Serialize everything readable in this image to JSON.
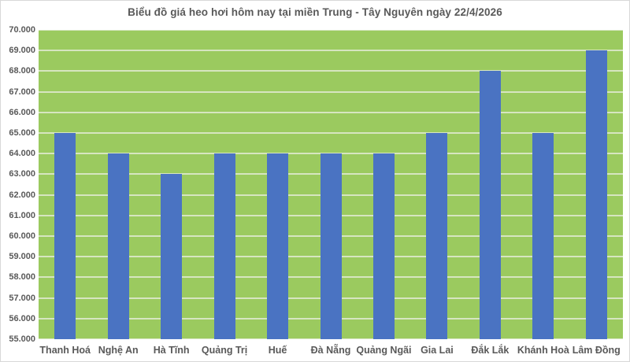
{
  "header": {
    "title": "Biểu đồ giá heo hơi hôm nay tại miền Trung - Tây Nguyên ngày 22/4/2026"
  },
  "colors": {
    "plot_background": "#9BCA5F",
    "bar": "#4A73C2",
    "gridline": "#D6E5C0",
    "text": "#595959",
    "frame_border": "#D8D8D8",
    "page_background": "#FFFFFF"
  },
  "chart_data": {
    "type": "bar",
    "title": "Biểu đồ giá heo hơi hôm nay tại miền Trung - Tây Nguyên ngày 22/4/2026",
    "categories": [
      "Thanh Hoá",
      "Nghệ An",
      "Hà Tĩnh",
      "Quảng Trị",
      "Huế",
      "Đà Nẵng",
      "Quảng Ngãi",
      "Gia Lai",
      "Đắk Lắk",
      "Khánh Hoà",
      "Lâm Đồng"
    ],
    "values": [
      65000,
      64000,
      63000,
      64000,
      64000,
      64000,
      64000,
      65000,
      68000,
      65000,
      69000
    ],
    "xlabel": "",
    "ylabel": "",
    "ylim": [
      55000,
      70000
    ],
    "ytick_step": 1000,
    "ytick_labels": [
      "55.000",
      "56.000",
      "57.000",
      "58.000",
      "59.000",
      "60.000",
      "61.000",
      "62.000",
      "63.000",
      "64.000",
      "65.000",
      "66.000",
      "67.000",
      "68.000",
      "69.000",
      "70.000"
    ],
    "grid": "horizontal",
    "legend": "none"
  }
}
